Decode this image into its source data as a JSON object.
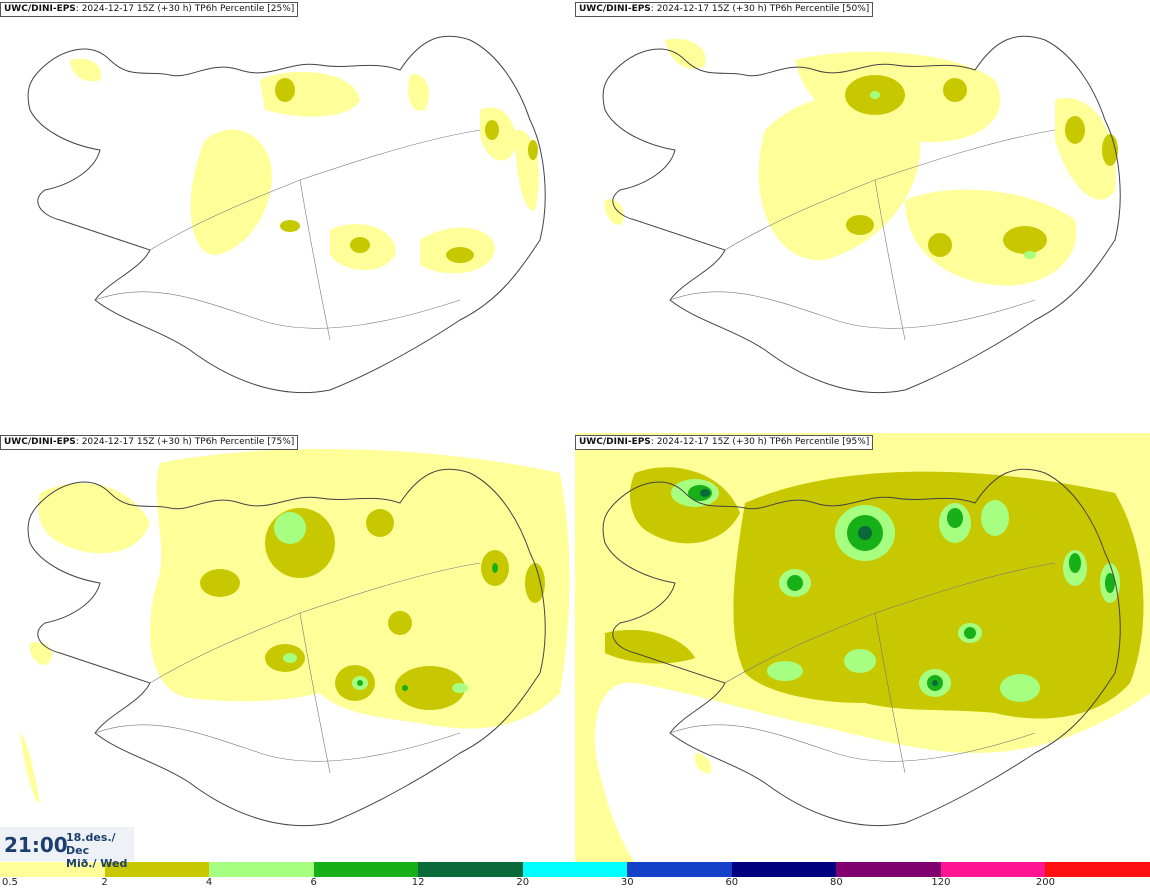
{
  "panels": [
    {
      "model": "UWC/DINI-EPS",
      "run": ": 2024-12-17 15Z (+30 h)",
      "title": "TP6h Percentile [25%]"
    },
    {
      "model": "UWC/DINI-EPS",
      "run": ": 2024-12-17 15Z (+30 h)",
      "title": "TP6h Percentile [50%]"
    },
    {
      "model": "UWC/DINI-EPS",
      "run": ": 2024-12-17 15Z (+30 h)",
      "title": "TP6h Percentile [75%]"
    },
    {
      "model": "UWC/DINI-EPS",
      "run": ": 2024-12-17 15Z (+30 h)",
      "title": "TP6h Percentile [95%]"
    }
  ],
  "valid": {
    "time": "21:00",
    "date": "18.des./ Dec",
    "day": "Mið./ Wed"
  },
  "legend": {
    "colors": [
      "#ffff9a",
      "#c8c800",
      "#a6ff80",
      "#18b018",
      "#0a6a3a",
      "#00ffff",
      "#1540c8",
      "#000080",
      "#800070",
      "#ff1493",
      "#ff1010"
    ],
    "labels": [
      "0.5",
      "2",
      "4",
      "6",
      "12",
      "20",
      "30",
      "60",
      "80",
      "120",
      "200"
    ]
  }
}
